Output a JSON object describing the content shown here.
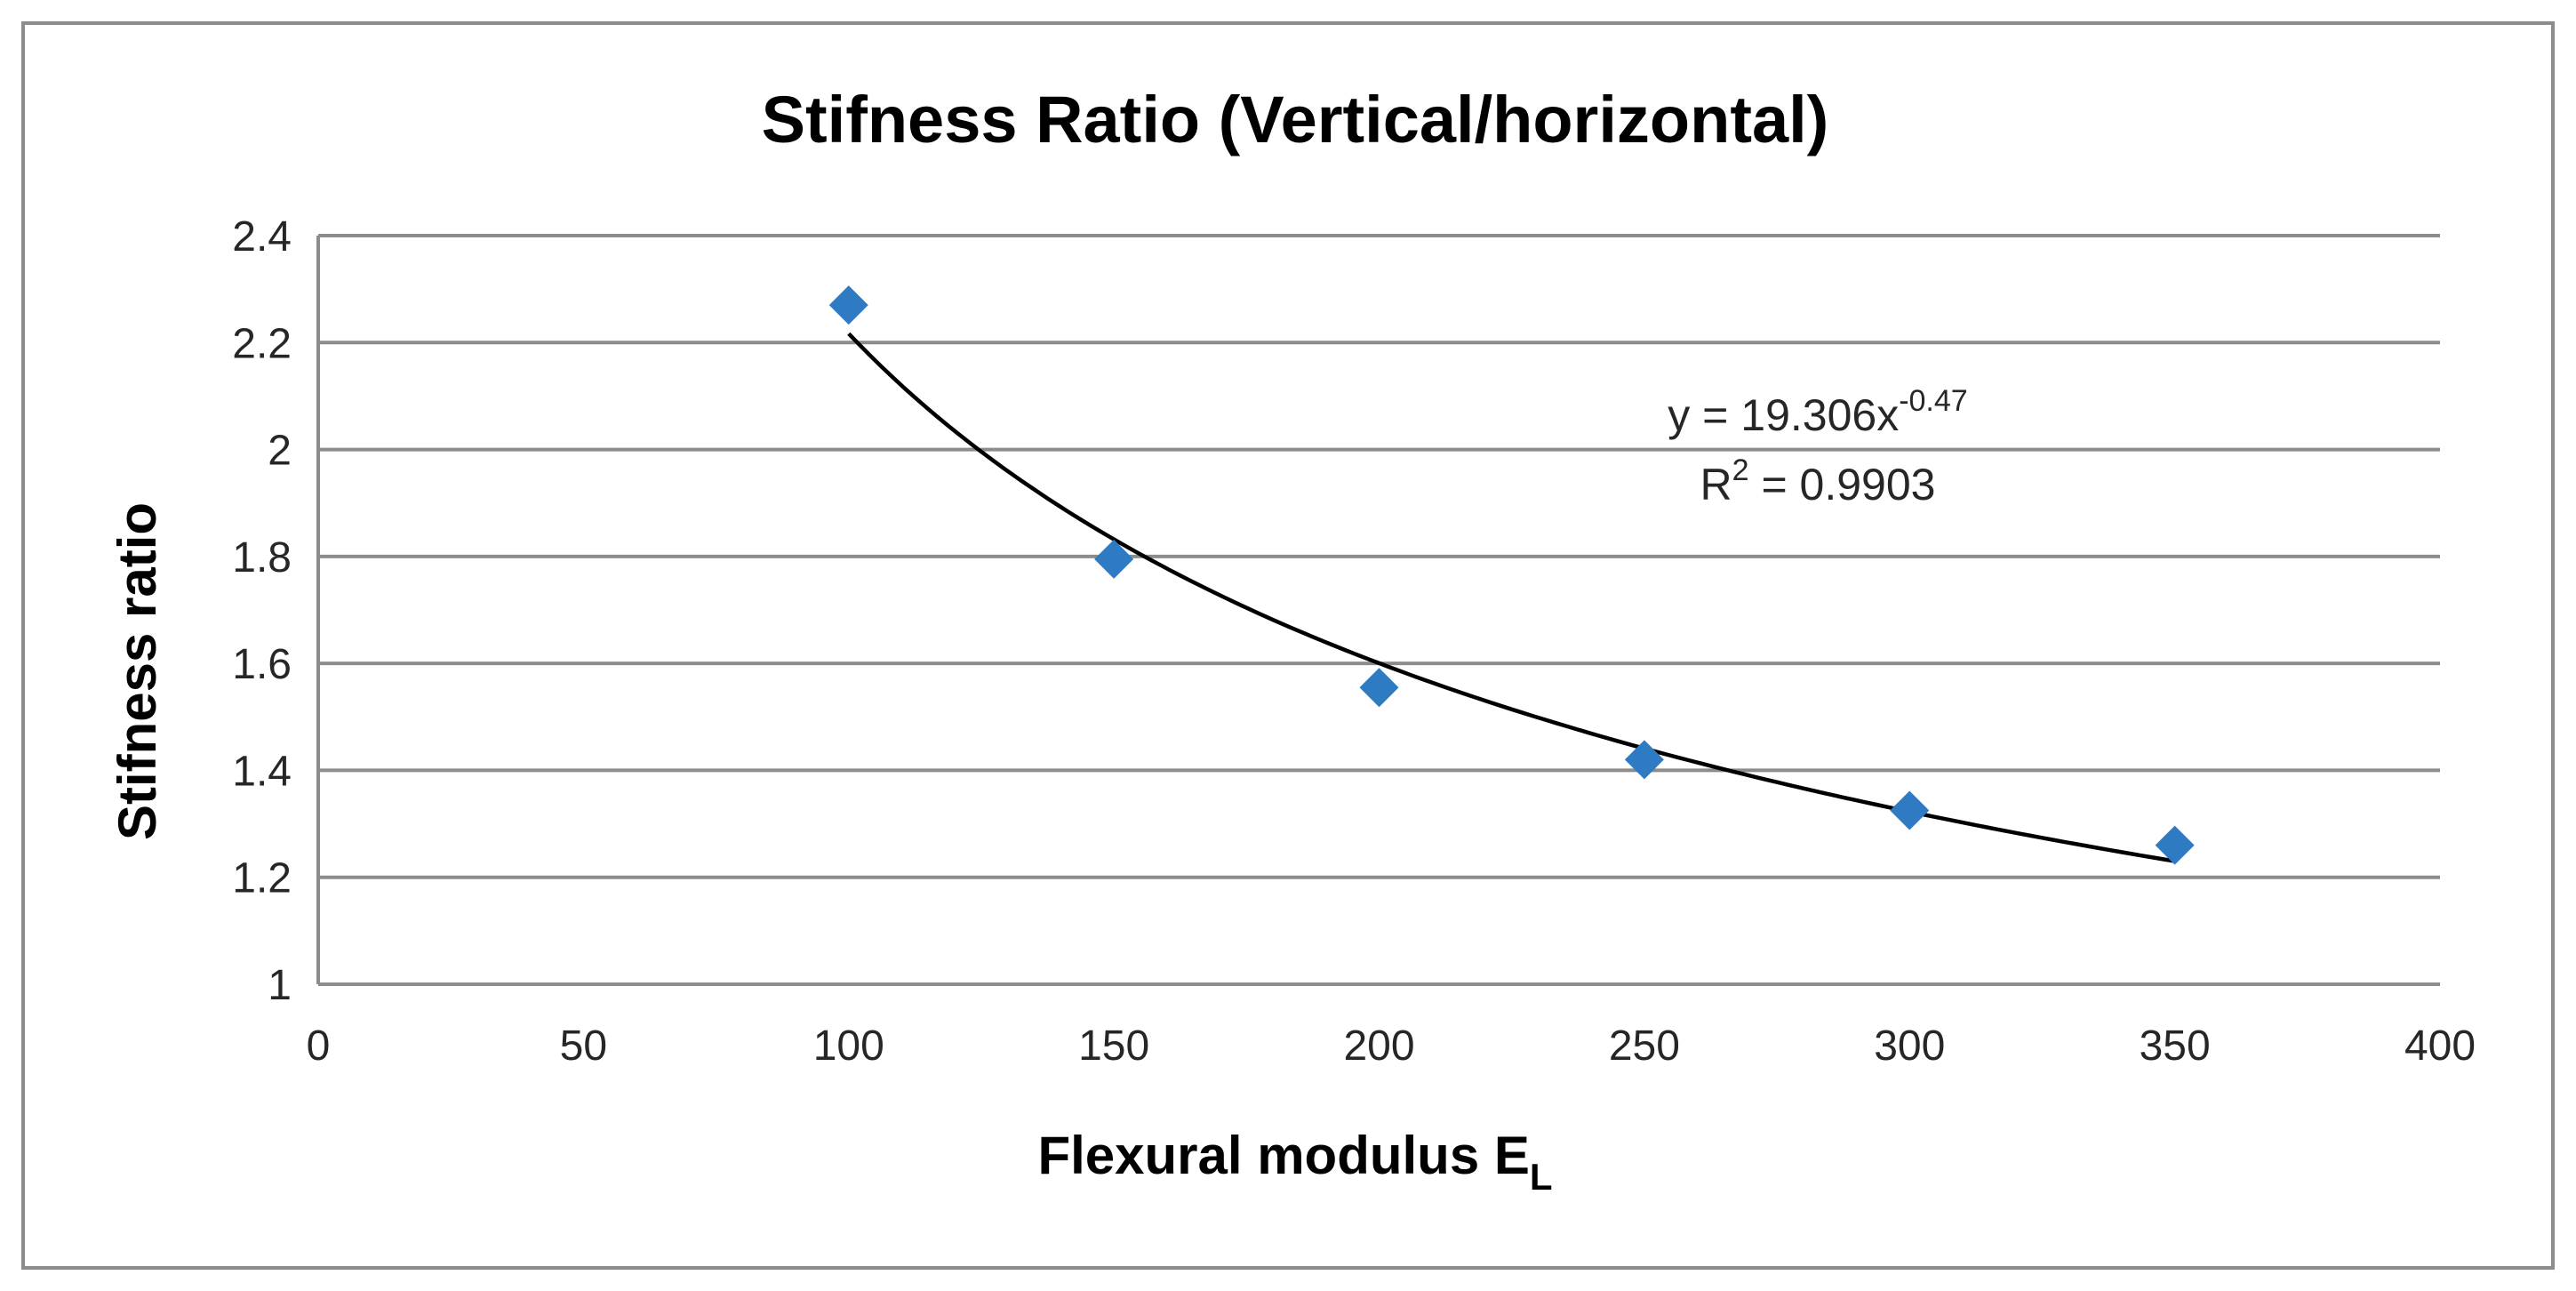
{
  "chart_data": {
    "type": "scatter",
    "title": "Stifness Ratio (Vertical/horizontal)",
    "xlabel": "Flexural modulus E",
    "xlabel_subscript": "L",
    "ylabel": "Stifness ratio",
    "xlim": [
      0,
      400
    ],
    "ylim": [
      1,
      2.4
    ],
    "x_ticks": [
      0,
      50,
      100,
      150,
      200,
      250,
      300,
      350,
      400
    ],
    "x_tick_labels": [
      "0",
      "50",
      "100",
      "150",
      "200",
      "250",
      "300",
      "350",
      "400"
    ],
    "y_ticks": [
      1,
      1.2,
      1.4,
      1.6,
      1.8,
      2,
      2.2,
      2.4
    ],
    "y_tick_labels": [
      "1",
      "1.2",
      "1.4",
      "1.6",
      "1.8",
      "2",
      "2.2",
      "2.4"
    ],
    "grid": "horizontal",
    "series": [
      {
        "name": "Stiffness ratio",
        "marker": "diamond",
        "color": "#2e7bc4",
        "x": [
          100,
          150,
          200,
          250,
          300,
          350
        ],
        "y": [
          2.27,
          1.795,
          1.555,
          1.42,
          1.325,
          1.26
        ]
      }
    ],
    "trendline": {
      "type": "power",
      "coefficient": 19.306,
      "exponent": -0.47,
      "x_range": [
        100,
        350
      ],
      "color": "#000000",
      "equation_prefix": "y = 19.306x",
      "equation_exponent": "-0.47",
      "r2_prefix": "R",
      "r2_power": "2",
      "r2_value": " = 0.9903"
    }
  }
}
